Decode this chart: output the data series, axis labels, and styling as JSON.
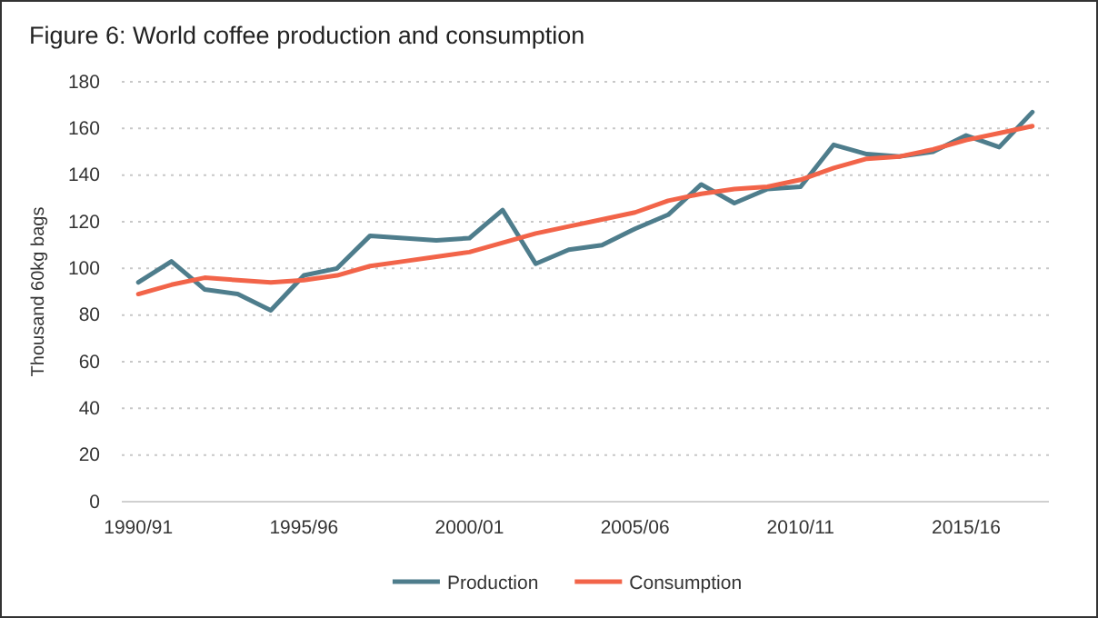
{
  "chart_data": {
    "type": "line",
    "title": "Figure 6: World coffee production and consumption",
    "ylabel": "Thousand 60kg bags",
    "categories": [
      "1990/91",
      null,
      null,
      null,
      null,
      "1995/96",
      null,
      null,
      null,
      null,
      "2000/01",
      null,
      null,
      null,
      null,
      "2005/06",
      null,
      null,
      null,
      null,
      "2010/11",
      null,
      null,
      null,
      null,
      "2015/16",
      null,
      null
    ],
    "series": [
      {
        "name": "Production",
        "color": "#4e7d8c",
        "values": [
          94,
          103,
          91,
          89,
          82,
          97,
          100,
          114,
          113,
          112,
          113,
          125,
          102,
          108,
          110,
          117,
          123,
          136,
          128,
          134,
          135,
          153,
          149,
          148,
          150,
          157,
          152,
          167
        ]
      },
      {
        "name": "Consumption",
        "color": "#f26449",
        "values": [
          89,
          93,
          96,
          95,
          94,
          95,
          97,
          101,
          103,
          105,
          107,
          111,
          115,
          118,
          121,
          124,
          129,
          132,
          134,
          135,
          138,
          143,
          147,
          148,
          151,
          155,
          158,
          161
        ]
      }
    ],
    "ylim": [
      0,
      180
    ],
    "yticks": [
      0,
      20,
      40,
      60,
      80,
      100,
      120,
      140,
      160,
      180
    ],
    "grid": "y",
    "legend": "bottom",
    "marker": "none",
    "line_style": "solid"
  }
}
